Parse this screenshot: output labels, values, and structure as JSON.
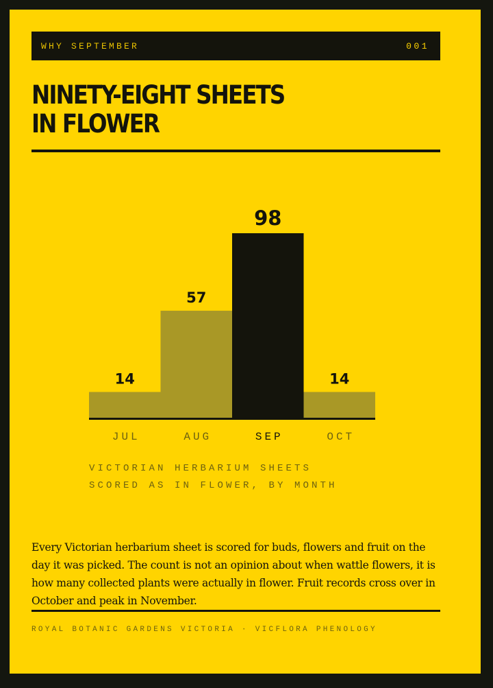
{
  "header": {
    "label": "WHY SEPTEMBER",
    "number": "001"
  },
  "title": {
    "line1": "NINETY-EIGHT SHEETS",
    "line2": "IN FLOWER"
  },
  "chart_data": {
    "type": "bar",
    "categories": [
      "JUL",
      "AUG",
      "SEP",
      "OCT"
    ],
    "values": [
      14,
      57,
      98,
      14
    ],
    "data_labels": [
      "14",
      "57",
      "98",
      "14"
    ],
    "highlight": "SEP",
    "title": "",
    "xlabel": "",
    "ylabel": "",
    "ylim": [
      0,
      98
    ],
    "grid": false,
    "legend": "none",
    "colors": {
      "bar": "#a99826",
      "highlight": "#14140c",
      "baseline": "#14140c",
      "category_label": "#6e6210",
      "highlight_label": "#14140c"
    }
  },
  "caption": {
    "line1": "VICTORIAN HERBARIUM SHEETS",
    "line2": "SCORED AS IN FLOWER, BY MONTH"
  },
  "body": "Every Victorian herbarium sheet is scored for buds, flowers and fruit on the day it was picked. The count is not an opinion about when wattle flowers, it is how many collected plants were actually in flower. Fruit records cross over in October and peak in November.",
  "footer": "ROYAL BOTANIC GARDENS VICTORIA · VICFLORA PHENOLOGY"
}
